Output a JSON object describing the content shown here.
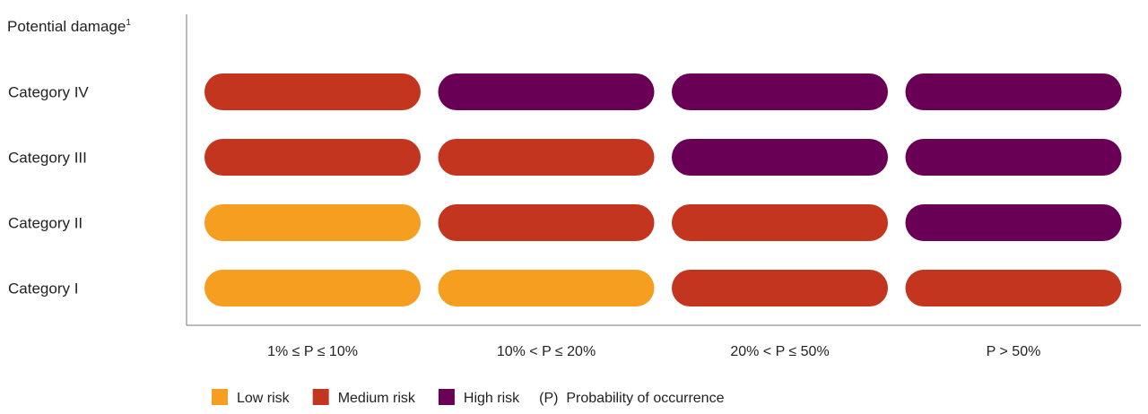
{
  "chart_data": {
    "type": "heatmap",
    "title": "",
    "ylabel": "Potential damage",
    "ylabel_superscript": "1",
    "rows": [
      "Category IV",
      "Category III",
      "Category II",
      "Category I"
    ],
    "columns": [
      "1% ≤ P ≤ 10%",
      "10% < P ≤ 20%",
      "20% < P ≤ 50%",
      "P > 50%"
    ],
    "cells": [
      [
        "Medium risk",
        "High risk",
        "High risk",
        "High risk"
      ],
      [
        "Medium risk",
        "Medium risk",
        "High risk",
        "High risk"
      ],
      [
        "Low risk",
        "Medium risk",
        "Medium risk",
        "High risk"
      ],
      [
        "Low risk",
        "Low risk",
        "Medium risk",
        "Medium risk"
      ]
    ],
    "levels": [
      {
        "name": "Low risk",
        "color": "#F59E1F"
      },
      {
        "name": "Medium risk",
        "color": "#C3351E"
      },
      {
        "name": "High risk",
        "color": "#6A0055"
      }
    ],
    "legend_note": "(P)  Probability of occurrence",
    "legend_position": "bottom"
  }
}
